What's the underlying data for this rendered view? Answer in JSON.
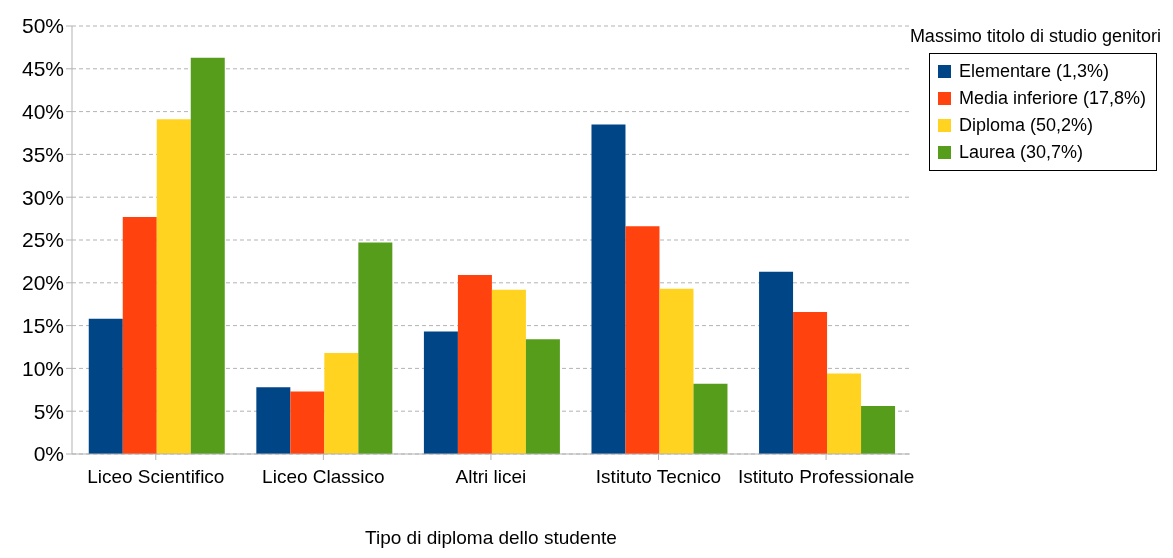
{
  "chart_data": {
    "type": "bar",
    "xlabel": "Tipo di diploma dello studente",
    "legend_title": "Massimo titolo di studio genitori",
    "categories": [
      "Liceo Scientifico",
      "Liceo Classico",
      "Altri licei",
      "Istituto Tecnico",
      "Istituto Professionale"
    ],
    "series": [
      {
        "name": "Elementare (1,3%)",
        "color": "#004586",
        "values": [
          15.8,
          7.8,
          14.3,
          38.5,
          21.3
        ]
      },
      {
        "name": "Media inferiore (17,8%)",
        "color": "#ff420e",
        "values": [
          27.7,
          7.3,
          20.9,
          26.6,
          16.6
        ]
      },
      {
        "name": "Diploma (50,2%)",
        "color": "#ffd320",
        "values": [
          39.1,
          11.8,
          19.2,
          19.3,
          9.4
        ]
      },
      {
        "name": "Laurea (30,7%)",
        "color": "#579d1c",
        "values": [
          46.3,
          24.7,
          13.4,
          8.2,
          5.6
        ]
      }
    ],
    "ylim": [
      0,
      50
    ],
    "yticks": [
      {
        "value": 0,
        "label": "0%"
      },
      {
        "value": 5,
        "label": "5%"
      },
      {
        "value": 10,
        "label": "10%"
      },
      {
        "value": 15,
        "label": "15%"
      },
      {
        "value": 20,
        "label": "20%"
      },
      {
        "value": 25,
        "label": "25%"
      },
      {
        "value": 30,
        "label": "30%"
      },
      {
        "value": 35,
        "label": "35%"
      },
      {
        "value": 40,
        "label": "40%"
      },
      {
        "value": 45,
        "label": "45%"
      },
      {
        "value": 50,
        "label": "50%"
      }
    ],
    "grid": "y",
    "legend": "top right"
  }
}
